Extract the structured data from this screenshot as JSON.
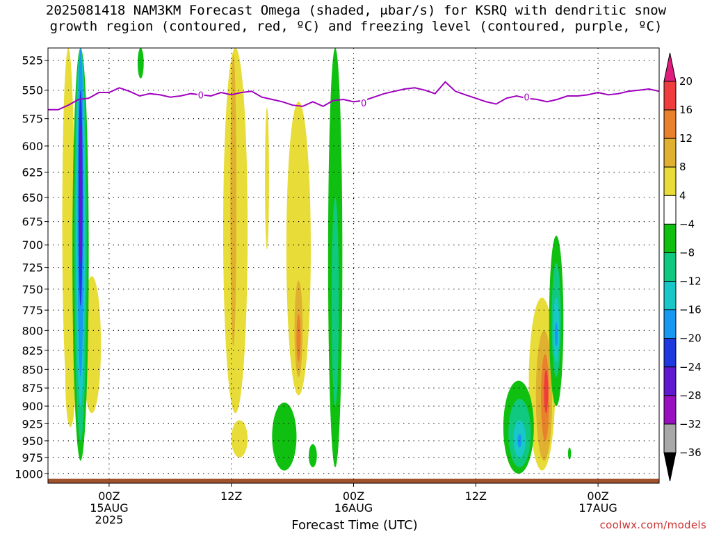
{
  "title": {
    "line1": "2025081418 NAM3KM Forecast Omega (shaded, μbar/s) for KSRQ with dendritic snow",
    "line2": "growth region (contoured, red, ºC) and freezing level (contoured, purple, ºC)"
  },
  "x_axis_title": "Forecast Time (UTC)",
  "credit": "coolwx.com/models",
  "chart_data": {
    "type": "heatmap",
    "title": "2025081418 NAM3KM Forecast Omega (shaded, μbar/s) for KSRQ with dendritic snow growth region (contoured, red, ºC) and freezing level (contoured, purple, ºC)",
    "xlabel": "Forecast Time (UTC)",
    "ylabel": "",
    "x_units": "hours since 2025-08-14 18Z",
    "xlim": [
      0,
      60
    ],
    "ylim": [
      1015,
      515
    ],
    "y_scale": "log-pressure (hPa), inverted",
    "grid": true,
    "y_ticks": [
      525,
      550,
      575,
      600,
      625,
      650,
      675,
      700,
      725,
      750,
      775,
      800,
      825,
      850,
      875,
      900,
      925,
      950,
      975,
      1000
    ],
    "x_ticks": [
      {
        "x": 6,
        "label": "00Z",
        "sub1": "15AUG",
        "sub2": "2025"
      },
      {
        "x": 18,
        "label": "12Z",
        "sub1": "",
        "sub2": ""
      },
      {
        "x": 30,
        "label": "00Z",
        "sub1": "16AUG",
        "sub2": ""
      },
      {
        "x": 42,
        "label": "12Z",
        "sub1": "",
        "sub2": ""
      },
      {
        "x": 54,
        "label": "00Z",
        "sub1": "17AUG",
        "sub2": ""
      }
    ],
    "colorbar": {
      "levels": [
        20,
        16,
        12,
        8,
        4,
        -4,
        -8,
        -12,
        -16,
        -20,
        -24,
        -28,
        -32,
        -36
      ],
      "labels": [
        "20",
        "16",
        "12",
        "8",
        "4",
        "−4",
        "−8",
        "−12",
        "−16",
        "−20",
        "−24",
        "−28",
        "−32",
        "−36"
      ],
      "colors": [
        "#e01c7c",
        "#f03c3c",
        "#e8802c",
        "#e0b030",
        "#e8dc38",
        "#ffffff",
        "#10c010",
        "#10c880",
        "#18c8c8",
        "#1898f0",
        "#2038e0",
        "#6018d0",
        "#9810c0",
        "#a8a8a8",
        "#000000"
      ]
    },
    "freezing_level": {
      "color": "#a000c0",
      "label": "0",
      "points": [
        [
          0,
          567
        ],
        [
          1,
          567
        ],
        [
          2,
          563
        ],
        [
          3,
          558
        ],
        [
          4,
          557
        ],
        [
          5,
          552
        ],
        [
          6,
          552
        ],
        [
          7,
          548
        ],
        [
          8,
          551
        ],
        [
          9,
          555
        ],
        [
          10,
          553
        ],
        [
          11,
          554
        ],
        [
          12,
          556
        ],
        [
          13,
          555
        ],
        [
          14,
          553
        ],
        [
          15,
          554
        ],
        [
          16,
          555
        ],
        [
          17,
          552
        ],
        [
          18,
          554
        ],
        [
          19,
          552
        ],
        [
          20,
          551
        ],
        [
          21,
          556
        ],
        [
          22,
          558
        ],
        [
          23,
          560
        ],
        [
          24,
          563
        ],
        [
          25,
          564
        ],
        [
          26,
          560
        ],
        [
          27,
          564
        ],
        [
          28,
          559
        ],
        [
          29,
          558
        ],
        [
          30,
          560
        ],
        [
          31,
          559
        ],
        [
          32,
          556
        ],
        [
          33,
          553
        ],
        [
          34,
          551
        ],
        [
          35,
          549
        ],
        [
          36,
          548
        ],
        [
          37,
          550
        ],
        [
          38,
          553
        ],
        [
          39,
          543
        ],
        [
          40,
          551
        ],
        [
          41,
          554
        ],
        [
          42,
          557
        ],
        [
          43,
          560
        ],
        [
          44,
          562
        ],
        [
          45,
          557
        ],
        [
          46,
          555
        ],
        [
          47,
          557
        ],
        [
          48,
          558
        ],
        [
          49,
          560
        ],
        [
          50,
          558
        ],
        [
          51,
          555
        ],
        [
          52,
          555
        ],
        [
          53,
          554
        ],
        [
          54,
          552
        ],
        [
          55,
          554
        ],
        [
          56,
          553
        ],
        [
          57,
          551
        ],
        [
          58,
          550
        ],
        [
          59,
          549
        ],
        [
          60,
          551
        ]
      ],
      "labels_at": [
        [
          15,
          554
        ],
        [
          31,
          561
        ],
        [
          47,
          556
        ]
      ]
    },
    "omega_features": [
      {
        "value": 6,
        "color": "#e8dc38",
        "x_center": 2.0,
        "x_halfwidth": 0.6,
        "p_top": 515,
        "p_bottom": 885
      },
      {
        "value": 6,
        "color": "#e8dc38",
        "x_center": 2.2,
        "x_halfwidth": 0.5,
        "p_top": 800,
        "p_bottom": 930
      },
      {
        "value": 6,
        "color": "#e8dc38",
        "x_center": 4.3,
        "x_halfwidth": 0.9,
        "p_top": 735,
        "p_bottom": 910
      },
      {
        "value": -6,
        "color": "#10c010",
        "x_center": 3.2,
        "x_halfwidth": 0.8,
        "p_top": 515,
        "p_bottom": 980
      },
      {
        "value": -10,
        "color": "#10c880",
        "x_center": 3.2,
        "x_halfwidth": 0.6,
        "p_top": 515,
        "p_bottom": 950
      },
      {
        "value": -14,
        "color": "#18c8c8",
        "x_center": 3.2,
        "x_halfwidth": 0.45,
        "p_top": 515,
        "p_bottom": 900
      },
      {
        "value": -18,
        "color": "#1898f0",
        "x_center": 3.2,
        "x_halfwidth": 0.3,
        "p_top": 515,
        "p_bottom": 860
      },
      {
        "value": -22,
        "color": "#2038e0",
        "x_center": 3.2,
        "x_halfwidth": 0.2,
        "p_top": 550,
        "p_bottom": 770
      },
      {
        "value": -26,
        "color": "#6018d0",
        "x_center": 3.2,
        "x_halfwidth": 0.1,
        "p_top": 580,
        "p_bottom": 720
      },
      {
        "value": -6,
        "color": "#10c010",
        "x_center": 9.1,
        "x_halfwidth": 0.3,
        "p_top": 515,
        "p_bottom": 540
      },
      {
        "value": 6,
        "color": "#e8dc38",
        "x_center": 18.4,
        "x_halfwidth": 1.2,
        "p_top": 515,
        "p_bottom": 910
      },
      {
        "value": 10,
        "color": "#e0b030",
        "x_center": 18.2,
        "x_halfwidth": 0.3,
        "p_top": 520,
        "p_bottom": 820
      },
      {
        "value": 6,
        "color": "#e8dc38",
        "x_center": 18.8,
        "x_halfwidth": 0.8,
        "p_top": 920,
        "p_bottom": 975
      },
      {
        "value": 6,
        "color": "#e8dc38",
        "x_center": 21.5,
        "x_halfwidth": 0.2,
        "p_top": 565,
        "p_bottom": 705
      },
      {
        "value": 6,
        "color": "#e8dc38",
        "x_center": 24.6,
        "x_halfwidth": 1.2,
        "p_top": 560,
        "p_bottom": 885
      },
      {
        "value": 10,
        "color": "#e0b030",
        "x_center": 24.6,
        "x_halfwidth": 0.4,
        "p_top": 740,
        "p_bottom": 860
      },
      {
        "value": 14,
        "color": "#e8802c",
        "x_center": 24.6,
        "x_halfwidth": 0.2,
        "p_top": 780,
        "p_bottom": 840
      },
      {
        "value": -6,
        "color": "#10c010",
        "x_center": 28.2,
        "x_halfwidth": 0.7,
        "p_top": 515,
        "p_bottom": 990
      },
      {
        "value": -10,
        "color": "#10c880",
        "x_center": 28.2,
        "x_halfwidth": 0.35,
        "p_top": 650,
        "p_bottom": 900
      },
      {
        "value": -6,
        "color": "#10c010",
        "x_center": 23.2,
        "x_halfwidth": 1.2,
        "p_top": 895,
        "p_bottom": 995
      },
      {
        "value": -6,
        "color": "#10c010",
        "x_center": 26.0,
        "x_halfwidth": 0.4,
        "p_top": 955,
        "p_bottom": 990
      },
      {
        "value": 6,
        "color": "#e8dc38",
        "x_center": 48.5,
        "x_halfwidth": 1.3,
        "p_top": 760,
        "p_bottom": 995
      },
      {
        "value": 10,
        "color": "#e0b030",
        "x_center": 48.7,
        "x_halfwidth": 0.8,
        "p_top": 800,
        "p_bottom": 980
      },
      {
        "value": 14,
        "color": "#e8802c",
        "x_center": 48.8,
        "x_halfwidth": 0.4,
        "p_top": 830,
        "p_bottom": 950
      },
      {
        "value": 18,
        "color": "#f03c3c",
        "x_center": 48.9,
        "x_halfwidth": 0.2,
        "p_top": 850,
        "p_bottom": 910
      },
      {
        "value": -6,
        "color": "#10c010",
        "x_center": 49.9,
        "x_halfwidth": 0.7,
        "p_top": 690,
        "p_bottom": 900
      },
      {
        "value": -10,
        "color": "#10c880",
        "x_center": 49.9,
        "x_halfwidth": 0.45,
        "p_top": 720,
        "p_bottom": 860
      },
      {
        "value": -14,
        "color": "#18c8c8",
        "x_center": 49.9,
        "x_halfwidth": 0.3,
        "p_top": 760,
        "p_bottom": 840
      },
      {
        "value": -18,
        "color": "#1898f0",
        "x_center": 49.9,
        "x_halfwidth": 0.15,
        "p_top": 790,
        "p_bottom": 820
      },
      {
        "value": -6,
        "color": "#10c010",
        "x_center": 46.2,
        "x_halfwidth": 1.5,
        "p_top": 865,
        "p_bottom": 1000
      },
      {
        "value": -10,
        "color": "#10c880",
        "x_center": 46.3,
        "x_halfwidth": 1.1,
        "p_top": 890,
        "p_bottom": 990
      },
      {
        "value": -14,
        "color": "#18c8c8",
        "x_center": 46.3,
        "x_halfwidth": 0.6,
        "p_top": 920,
        "p_bottom": 975
      },
      {
        "value": -18,
        "color": "#1898f0",
        "x_center": 46.3,
        "x_halfwidth": 0.2,
        "p_top": 940,
        "p_bottom": 960
      },
      {
        "value": -6,
        "color": "#10c010",
        "x_center": 51.2,
        "x_halfwidth": 0.15,
        "p_top": 960,
        "p_bottom": 978
      }
    ],
    "terrain": {
      "color": "#a0522d",
      "p_top": 1008
    }
  }
}
